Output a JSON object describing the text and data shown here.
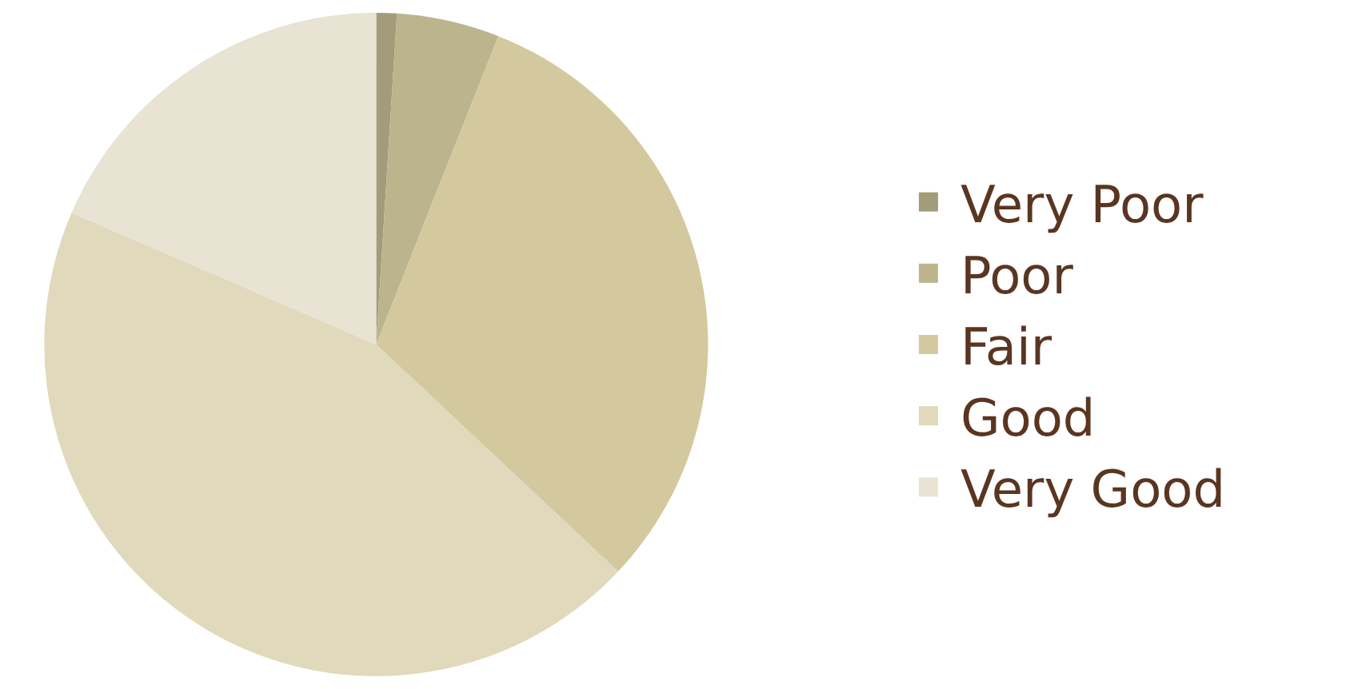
{
  "chart_data": {
    "type": "pie",
    "categories": [
      "Very Poor",
      "Poor",
      "Fair",
      "Good",
      "Very Good"
    ],
    "values": [
      1,
      5,
      31,
      44.5,
      18.5
    ],
    "colors": [
      "#a39c7a",
      "#bcb48c",
      "#d4c99e",
      "#e0d9bb",
      "#e8e3d2"
    ],
    "legend": "right"
  }
}
